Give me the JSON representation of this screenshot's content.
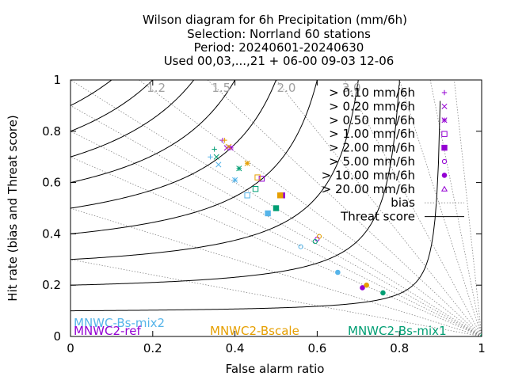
{
  "chart_data": {
    "type": "scatter",
    "title_lines": [
      "Wilson diagram  for 6h Precipitation (mm/6h)",
      "Selection: Norrland     60 stations",
      "Period: 20240601-20240630",
      "Used 00,03,...,21 + 06-00 09-03 12-06"
    ],
    "xlabel": "False alarm ratio",
    "ylabel": "Hit rate (bias and Threat score)",
    "xlim": [
      0,
      1
    ],
    "ylim": [
      0,
      1
    ],
    "x_ticks": [
      "0",
      "0.2",
      "0.4",
      "0.6",
      "0.8",
      "1"
    ],
    "y_ticks": [
      "0",
      "0.2",
      "0.4",
      "0.6",
      "0.8",
      "1"
    ],
    "bias_labels": [
      "1.2",
      "1.5",
      "2.0",
      "3.0"
    ],
    "bias_label_values": [
      1.2,
      1.5,
      2.0,
      3.0
    ],
    "bias_line_values": [
      0.3,
      0.5,
      0.7,
      0.8,
      0.9,
      1.0,
      1.2,
      1.5,
      2.0,
      3.0,
      5.0,
      8.0,
      15.0
    ],
    "threat_score_values": [
      0.1,
      0.2,
      0.3,
      0.4,
      0.5,
      0.6,
      0.7,
      0.8,
      0.9
    ],
    "legend": {
      "thresholds": [
        {
          "label": "> 0.10 mm/6h",
          "symbol": "plus"
        },
        {
          "label": "> 0.20 mm/6h",
          "symbol": "cross"
        },
        {
          "label": "> 0.50 mm/6h",
          "symbol": "star"
        },
        {
          "label": "> 1.00 mm/6h",
          "symbol": "box"
        },
        {
          "label": "> 2.00 mm/6h",
          "symbol": "filled-box"
        },
        {
          "label": "> 5.00 mm/6h",
          "symbol": "circle"
        },
        {
          "label": "> 10.00 mm/6h",
          "symbol": "filled-circle"
        },
        {
          "label": "> 20.00 mm/6h",
          "symbol": "triangle"
        }
      ],
      "bias_label": "bias",
      "threat_label": "Threat score",
      "legend_symbol_color": "#9400d3"
    },
    "series": [
      {
        "name": "MNWC-Bs-mix2",
        "color": "#56b4e9",
        "points": [
          {
            "symbol": "plus",
            "x": 0.34,
            "y": 0.7
          },
          {
            "symbol": "cross",
            "x": 0.36,
            "y": 0.67
          },
          {
            "symbol": "star",
            "x": 0.4,
            "y": 0.61
          },
          {
            "symbol": "box",
            "x": 0.43,
            "y": 0.55
          },
          {
            "symbol": "filled-box",
            "x": 0.48,
            "y": 0.48
          },
          {
            "symbol": "circle",
            "x": 0.56,
            "y": 0.35
          },
          {
            "symbol": "filled-circle",
            "x": 0.65,
            "y": 0.25
          },
          {
            "symbol": "triangle",
            "x": 1.0,
            "y": 0.0
          }
        ]
      },
      {
        "name": "MNWC2-ref",
        "color": "#9400d3",
        "points": [
          {
            "symbol": "plus",
            "x": 0.37,
            "y": 0.765
          },
          {
            "symbol": "cross",
            "x": 0.38,
            "y": 0.735
          },
          {
            "symbol": "star",
            "x": 0.39,
            "y": 0.735
          },
          {
            "symbol": "box",
            "x": 0.465,
            "y": 0.615
          },
          {
            "symbol": "filled-box",
            "x": 0.515,
            "y": 0.55
          },
          {
            "symbol": "circle",
            "x": 0.6,
            "y": 0.38
          },
          {
            "symbol": "filled-circle",
            "x": 0.71,
            "y": 0.19
          },
          {
            "symbol": "triangle",
            "x": 1.0,
            "y": 0.0
          }
        ]
      },
      {
        "name": "MNWC2-Bscale",
        "color": "#e69f00",
        "points": [
          {
            "symbol": "plus",
            "x": 0.375,
            "y": 0.765
          },
          {
            "symbol": "cross",
            "x": 0.385,
            "y": 0.74
          },
          {
            "symbol": "star",
            "x": 0.43,
            "y": 0.675
          },
          {
            "symbol": "box",
            "x": 0.455,
            "y": 0.62
          },
          {
            "symbol": "filled-box",
            "x": 0.51,
            "y": 0.55
          },
          {
            "symbol": "circle",
            "x": 0.605,
            "y": 0.39
          },
          {
            "symbol": "filled-circle",
            "x": 0.72,
            "y": 0.2
          },
          {
            "symbol": "triangle",
            "x": 1.0,
            "y": 0.0
          }
        ]
      },
      {
        "name": "MNWC2-Bs-mix1",
        "color": "#009e73",
        "points": [
          {
            "symbol": "plus",
            "x": 0.35,
            "y": 0.73
          },
          {
            "symbol": "cross",
            "x": 0.355,
            "y": 0.7
          },
          {
            "symbol": "star",
            "x": 0.41,
            "y": 0.655
          },
          {
            "symbol": "box",
            "x": 0.45,
            "y": 0.575
          },
          {
            "symbol": "filled-box",
            "x": 0.5,
            "y": 0.5
          },
          {
            "symbol": "circle",
            "x": 0.595,
            "y": 0.37
          },
          {
            "symbol": "filled-circle",
            "x": 0.76,
            "y": 0.17
          },
          {
            "symbol": "triangle",
            "x": 1.0,
            "y": 0.0
          }
        ]
      }
    ]
  }
}
